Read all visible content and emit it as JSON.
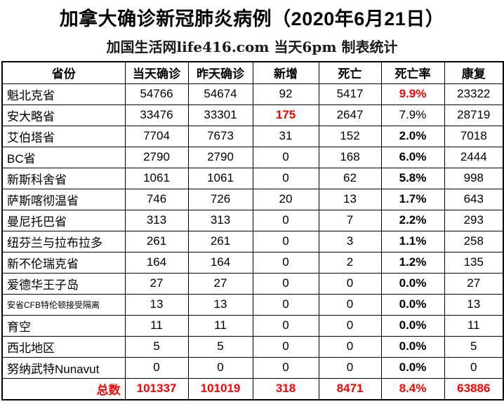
{
  "page": {
    "title": "加拿大确诊新冠肺炎病例（2020年6月21日）",
    "subtitle": "加国生活网life416.com 当天6pm 制表统计"
  },
  "colors": {
    "highlight_red": "#ff0000",
    "text_black": "#000000",
    "border_black": "#000000",
    "background": "#ffffff"
  },
  "table": {
    "headers": [
      "省份",
      "当天确诊",
      "昨天确诊",
      "新增",
      "死亡",
      "死亡率",
      "康复"
    ],
    "rows": [
      {
        "province": "魁北克省",
        "today": "54766",
        "yesterday": "54674",
        "new": "92",
        "deaths": "5417",
        "death_rate": "9.9%",
        "recovered": "23322",
        "styles": {
          "death_rate": "red-bold"
        }
      },
      {
        "province": "安大略省",
        "today": "33476",
        "yesterday": "33301",
        "new": "175",
        "deaths": "2647",
        "death_rate": "7.9%",
        "recovered": "28719",
        "styles": {
          "new": "red-bold"
        }
      },
      {
        "province": "艾伯塔省",
        "today": "7704",
        "yesterday": "7673",
        "new": "31",
        "deaths": "152",
        "death_rate": "2.0%",
        "recovered": "7018",
        "styles": {
          "death_rate": "bold"
        }
      },
      {
        "province": "BC省",
        "today": "2790",
        "yesterday": "2790",
        "new": "0",
        "deaths": "168",
        "death_rate": "6.0%",
        "recovered": "2444",
        "styles": {
          "death_rate": "bold"
        }
      },
      {
        "province": "新斯科舍省",
        "today": "1061",
        "yesterday": "1061",
        "new": "0",
        "deaths": "62",
        "death_rate": "5.8%",
        "recovered": "998",
        "styles": {
          "death_rate": "bold"
        }
      },
      {
        "province": "萨斯喀彻温省",
        "today": "746",
        "yesterday": "726",
        "new": "20",
        "deaths": "13",
        "death_rate": "1.7%",
        "recovered": "643",
        "styles": {
          "death_rate": "bold"
        }
      },
      {
        "province": "曼尼托巴省",
        "today": "313",
        "yesterday": "313",
        "new": "0",
        "deaths": "7",
        "death_rate": "2.2%",
        "recovered": "293",
        "styles": {
          "death_rate": "bold"
        }
      },
      {
        "province": "纽芬兰与拉布拉多",
        "today": "261",
        "yesterday": "261",
        "new": "0",
        "deaths": "3",
        "death_rate": "1.1%",
        "recovered": "258",
        "styles": {
          "death_rate": "bold"
        }
      },
      {
        "province": "新不伦瑞克省",
        "today": "164",
        "yesterday": "164",
        "new": "0",
        "deaths": "2",
        "death_rate": "1.2%",
        "recovered": "135",
        "styles": {
          "death_rate": "bold"
        }
      },
      {
        "province": "爱德华王子岛",
        "today": "27",
        "yesterday": "27",
        "new": "0",
        "deaths": "0",
        "death_rate": "0.0%",
        "recovered": "27",
        "styles": {
          "death_rate": "bold"
        }
      },
      {
        "province": "安省CFB特伦顿接受隔离",
        "today": "13",
        "yesterday": "13",
        "new": "0",
        "deaths": "0",
        "death_rate": "0.0%",
        "recovered": "13",
        "styles": {
          "death_rate": "bold",
          "province": "small"
        }
      },
      {
        "province": "育空",
        "today": "11",
        "yesterday": "11",
        "new": "0",
        "deaths": "0",
        "death_rate": "0.0%",
        "recovered": "11",
        "styles": {
          "death_rate": "bold"
        }
      },
      {
        "province": "西北地区",
        "today": "5",
        "yesterday": "5",
        "new": "0",
        "deaths": "0",
        "death_rate": "0.0%",
        "recovered": "5",
        "styles": {
          "death_rate": "bold"
        }
      },
      {
        "province": "努纳武特Nunavut",
        "today": "0",
        "yesterday": "0",
        "new": "0",
        "deaths": "0",
        "death_rate": "0.0%",
        "recovered": "0",
        "styles": {
          "death_rate": "bold"
        }
      }
    ],
    "total_row": {
      "label": "总数",
      "today": "101337",
      "yesterday": "101019",
      "new": "318",
      "deaths": "8471",
      "death_rate": "8.4%",
      "recovered": "63886"
    }
  },
  "chart_data": {
    "type": "table",
    "title": "加拿大确诊新冠肺炎病例（2020年6月21日）",
    "subtitle": "加国生活网life416.com 当天6pm 制表统计",
    "columns": [
      "省份",
      "当天确诊",
      "昨天确诊",
      "新增",
      "死亡",
      "死亡率",
      "康复"
    ],
    "rows": [
      [
        "魁北克省",
        54766,
        54674,
        92,
        5417,
        "9.9%",
        23322
      ],
      [
        "安大略省",
        33476,
        33301,
        175,
        2647,
        "7.9%",
        28719
      ],
      [
        "艾伯塔省",
        7704,
        7673,
        31,
        152,
        "2.0%",
        7018
      ],
      [
        "BC省",
        2790,
        2790,
        0,
        168,
        "6.0%",
        2444
      ],
      [
        "新斯科舍省",
        1061,
        1061,
        0,
        62,
        "5.8%",
        998
      ],
      [
        "萨斯喀彻温省",
        746,
        726,
        20,
        13,
        "1.7%",
        643
      ],
      [
        "曼尼托巴省",
        313,
        313,
        0,
        7,
        "2.2%",
        293
      ],
      [
        "纽芬兰与拉布拉多",
        261,
        261,
        0,
        3,
        "1.1%",
        258
      ],
      [
        "新不伦瑞克省",
        164,
        164,
        0,
        2,
        "1.2%",
        135
      ],
      [
        "爱德华王子岛",
        27,
        27,
        0,
        0,
        "0.0%",
        27
      ],
      [
        "安省CFB特伦顿接受隔离",
        13,
        13,
        0,
        0,
        "0.0%",
        13
      ],
      [
        "育空",
        11,
        11,
        0,
        0,
        "0.0%",
        11
      ],
      [
        "西北地区",
        5,
        5,
        0,
        0,
        "0.0%",
        5
      ],
      [
        "努纳武特Nunavut",
        0,
        0,
        0,
        0,
        "0.0%",
        0
      ]
    ],
    "total": [
      "总数",
      101337,
      101019,
      318,
      8471,
      "8.4%",
      63886
    ],
    "highlights": {
      "red_cells": [
        "魁北克省.死亡率",
        "安大略省.新增",
        "总数 row (all values)"
      ],
      "bold_column": "死亡率 (except 安大略省 7.9%)"
    }
  }
}
